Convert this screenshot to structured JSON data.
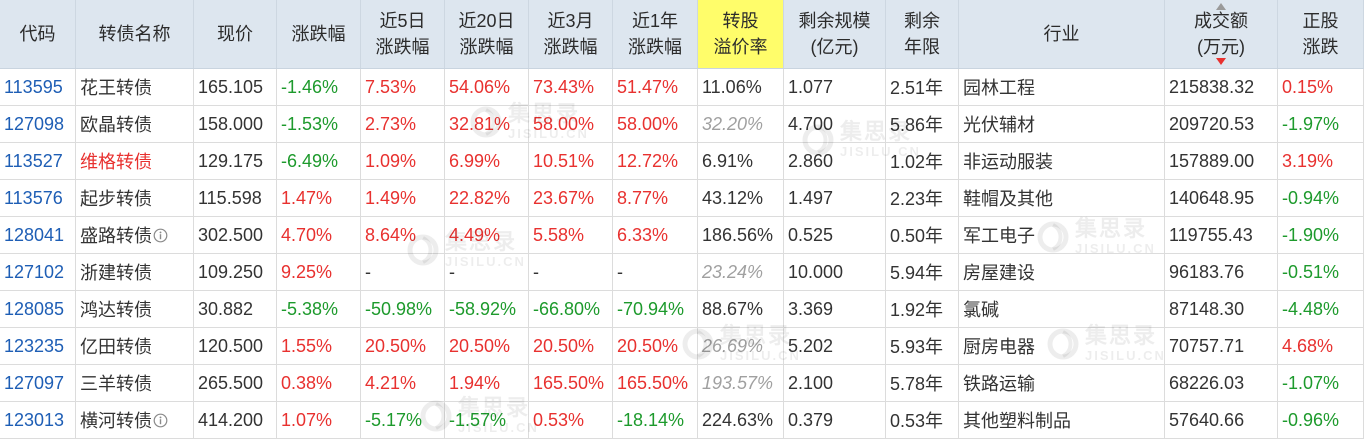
{
  "columns": {
    "code": [
      "代码"
    ],
    "name": [
      "转债名称"
    ],
    "price": [
      "现价"
    ],
    "change": [
      "涨跌幅"
    ],
    "change_5d": [
      "近5日",
      "涨跌幅"
    ],
    "change_20d": [
      "近20日",
      "涨跌幅"
    ],
    "change_3m": [
      "近3月",
      "涨跌幅"
    ],
    "change_1y": [
      "近1年",
      "涨跌幅"
    ],
    "premium": [
      "转股",
      "溢价率"
    ],
    "remaining_size": [
      "剩余规模",
      "(亿元)"
    ],
    "remaining_years": [
      "剩余",
      "年限"
    ],
    "industry": [
      "行业"
    ],
    "volume": [
      "成交额",
      "(万元)"
    ],
    "stock_change": [
      "正股",
      "涨跌"
    ]
  },
  "rows": [
    {
      "code": "113595",
      "name": "花王转债",
      "price": "165.105",
      "change": "-1.46%",
      "change_5d": "7.53%",
      "change_20d": "54.06%",
      "change_3m": "73.43%",
      "change_1y": "51.47%",
      "premium": "11.06%",
      "remaining_size": "1.077",
      "remaining_years": "2.51年",
      "industry": "园林工程",
      "volume": "215838.32",
      "stock_change": "0.15%"
    },
    {
      "code": "127098",
      "name": "欧晶转债",
      "price": "158.000",
      "change": "-1.53%",
      "change_5d": "2.73%",
      "change_20d": "32.81%",
      "change_3m": "58.00%",
      "change_1y": "58.00%",
      "premium": "32.20%",
      "premium_italic": true,
      "remaining_size": "4.700",
      "remaining_years": "5.86年",
      "industry": "光伏辅材",
      "volume": "209720.53",
      "stock_change": "-1.97%"
    },
    {
      "code": "113527",
      "name": "维格转债",
      "name_color": "#e8312f",
      "price": "129.175",
      "change": "-6.49%",
      "change_5d": "1.09%",
      "change_20d": "6.99%",
      "change_3m": "10.51%",
      "change_1y": "12.72%",
      "premium": "6.91%",
      "remaining_size": "2.860",
      "remaining_years": "1.02年",
      "industry": "非运动服装",
      "volume": "157889.00",
      "stock_change": "3.19%"
    },
    {
      "code": "113576",
      "name": "起步转债",
      "price": "115.598",
      "change": "1.47%",
      "change_5d": "1.49%",
      "change_20d": "22.82%",
      "change_3m": "23.67%",
      "change_1y": "8.77%",
      "premium": "43.12%",
      "remaining_size": "1.497",
      "remaining_years": "2.23年",
      "industry": "鞋帽及其他",
      "volume": "140648.95",
      "stock_change": "-0.94%"
    },
    {
      "code": "128041",
      "name": "盛路转债",
      "info_icon": true,
      "price": "302.500",
      "change": "4.70%",
      "change_5d": "8.64%",
      "change_20d": "4.49%",
      "change_3m": "5.58%",
      "change_1y": "6.33%",
      "premium": "186.56%",
      "remaining_size": "0.525",
      "remaining_years": "0.50年",
      "industry": "军工电子",
      "volume": "119755.43",
      "stock_change": "-1.90%"
    },
    {
      "code": "127102",
      "name": "浙建转债",
      "price": "109.250",
      "change": "9.25%",
      "change_5d": "-",
      "change_20d": "-",
      "change_3m": "-",
      "change_1y": "-",
      "premium": "23.24%",
      "premium_italic": true,
      "remaining_size": "10.000",
      "remaining_years": "5.94年",
      "industry": "房屋建设",
      "volume": "96183.76",
      "stock_change": "-0.51%"
    },
    {
      "code": "128085",
      "name": "鸿达转债",
      "price": "30.882",
      "change": "-5.38%",
      "change_5d": "-50.98%",
      "change_20d": "-58.92%",
      "change_3m": "-66.80%",
      "change_1y": "-70.94%",
      "premium": "88.67%",
      "remaining_size": "3.369",
      "remaining_years": "1.92年",
      "industry": "氯碱",
      "volume": "87148.30",
      "stock_change": "-4.48%"
    },
    {
      "code": "123235",
      "name": "亿田转债",
      "price": "120.500",
      "change": "1.55%",
      "change_5d": "20.50%",
      "change_20d": "20.50%",
      "change_3m": "20.50%",
      "change_1y": "20.50%",
      "premium": "26.69%",
      "premium_italic": true,
      "remaining_size": "5.202",
      "remaining_years": "5.93年",
      "industry": "厨房电器",
      "volume": "70757.71",
      "stock_change": "4.68%"
    },
    {
      "code": "127097",
      "name": "三羊转债",
      "price": "265.500",
      "change": "0.38%",
      "change_5d": "4.21%",
      "change_20d": "1.94%",
      "change_3m": "165.50%",
      "change_1y": "165.50%",
      "premium": "193.57%",
      "premium_italic": true,
      "remaining_size": "2.100",
      "remaining_years": "5.78年",
      "industry": "铁路运输",
      "volume": "68226.03",
      "stock_change": "-1.07%"
    },
    {
      "code": "123013",
      "name": "横河转债",
      "info_icon": true,
      "price": "414.200",
      "change": "1.07%",
      "change_5d": "-5.17%",
      "change_20d": "-1.57%",
      "change_3m": "0.53%",
      "change_1y": "-18.14%",
      "premium": "224.63%",
      "remaining_size": "0.379",
      "remaining_years": "0.53年",
      "industry": "其他塑料制品",
      "volume": "57640.66",
      "stock_change": "-0.96%"
    }
  ],
  "watermark": {
    "name": "集思录",
    "domain": "JISILU.CN"
  },
  "colors": {
    "up": "#e8312f",
    "down": "#1d9a2c",
    "link": "#1e5eb5",
    "muted": "#a0a0a0",
    "header_bg": "#dde6ef",
    "highlight": "#fffd6a",
    "grid": "#dcdcdc",
    "text": "#333333",
    "sort_active": "#e8312f",
    "sort_inactive": "#9a9a9a"
  },
  "icons": {
    "info": "info-icon",
    "sort_up": "sort-up-icon",
    "sort_down": "sort-down-icon",
    "watermark_logo": "leaf-logo-icon"
  }
}
